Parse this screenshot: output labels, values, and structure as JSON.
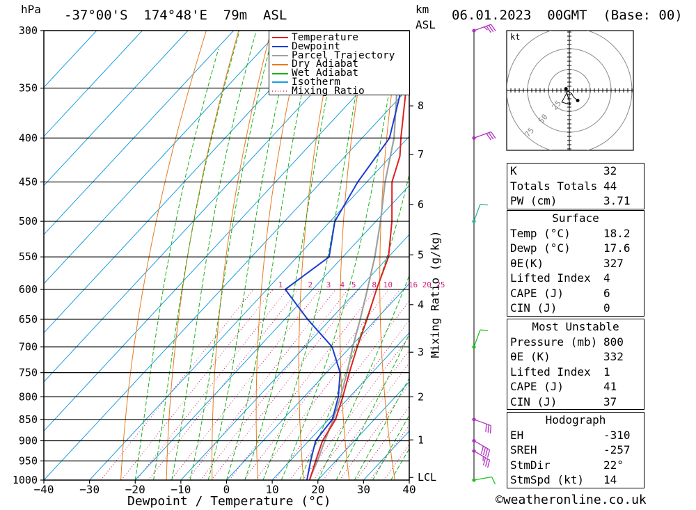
{
  "header": {
    "location": "-37°00'S  174°48'E  79m  ASL",
    "datetime": "06.01.2023  00GMT  (Base: 00)",
    "left_unit": "hPa",
    "right_unit_km": "km",
    "right_unit_asl": "ASL"
  },
  "legend": [
    "Temperature",
    "Dewpoint",
    "Parcel Trajectory",
    "Dry Adiabat",
    "Wet Adiabat",
    "Isotherm",
    "Mixing Ratio"
  ],
  "colors": {
    "temperature": "#e02020",
    "dewpoint": "#1a3cd8",
    "parcel": "#a0a0a0",
    "dry_adiabat": "#e87a1e",
    "wet_adiabat": "#19b019",
    "isotherm": "#1a9ee0",
    "mixing_ratio": "#d0207a",
    "wind_magenta": "#b030c0",
    "wind_cyan": "#30b0a0",
    "wind_green": "#20c020"
  },
  "chart_data": {
    "type": "skew-t",
    "xlabel": "Dewpoint / Temperature (°C)",
    "ylabel_right": "Mixing Ratio (g/kg)",
    "x_ticks": [
      -40,
      -30,
      -20,
      -10,
      0,
      10,
      20,
      30,
      40
    ],
    "pressure_levels": [
      300,
      350,
      400,
      450,
      500,
      550,
      600,
      650,
      700,
      750,
      800,
      850,
      900,
      950,
      1000
    ],
    "km_ticks": [
      {
        "label": "8",
        "p": 367
      },
      {
        "label": "7",
        "p": 418
      },
      {
        "label": "6",
        "p": 478
      },
      {
        "label": "5",
        "p": 547
      },
      {
        "label": "4",
        "p": 625
      },
      {
        "label": "3",
        "p": 710
      },
      {
        "label": "2",
        "p": 800
      },
      {
        "label": "1",
        "p": 898
      },
      {
        "label": "LCL",
        "p": 993
      }
    ],
    "mixing_ratio_labels": [
      "1",
      "2",
      "3",
      "4",
      "5",
      "8",
      "10",
      "16",
      "20",
      "25"
    ],
    "temperature": [
      {
        "p": 1000,
        "t": 18.2
      },
      {
        "p": 950,
        "t": 15.6
      },
      {
        "p": 900,
        "t": 13.0
      },
      {
        "p": 850,
        "t": 11.5
      },
      {
        "p": 800,
        "t": 8.5
      },
      {
        "p": 750,
        "t": 5.0
      },
      {
        "p": 700,
        "t": 1.5
      },
      {
        "p": 650,
        "t": -2.0
      },
      {
        "p": 600,
        "t": -6.0
      },
      {
        "p": 550,
        "t": -10.0
      },
      {
        "p": 500,
        "t": -16.5
      },
      {
        "p": 450,
        "t": -24.5
      },
      {
        "p": 420,
        "t": -28.0
      },
      {
        "p": 400,
        "t": -31.5
      },
      {
        "p": 350,
        "t": -40.5
      },
      {
        "p": 300,
        "t": -51.0
      }
    ],
    "dewpoint": [
      {
        "p": 1000,
        "t": 17.6
      },
      {
        "p": 950,
        "t": 14.5
      },
      {
        "p": 900,
        "t": 11.5
      },
      {
        "p": 850,
        "t": 10.8
      },
      {
        "p": 800,
        "t": 7.5
      },
      {
        "p": 750,
        "t": 3.0
      },
      {
        "p": 700,
        "t": -4.0
      },
      {
        "p": 650,
        "t": -15.0
      },
      {
        "p": 600,
        "t": -26.0
      },
      {
        "p": 550,
        "t": -23.0
      },
      {
        "p": 500,
        "t": -29.0
      },
      {
        "p": 450,
        "t": -32.0
      },
      {
        "p": 400,
        "t": -34.0
      },
      {
        "p": 350,
        "t": -41.5
      },
      {
        "p": 300,
        "t": -54.0
      }
    ],
    "parcel": [
      {
        "p": 1000,
        "t": 18.2
      },
      {
        "p": 993,
        "t": 17.8
      },
      {
        "p": 950,
        "t": 16.0
      },
      {
        "p": 900,
        "t": 13.5
      },
      {
        "p": 850,
        "t": 11.0
      },
      {
        "p": 800,
        "t": 8.0
      },
      {
        "p": 750,
        "t": 4.5
      },
      {
        "p": 700,
        "t": 0.5
      },
      {
        "p": 650,
        "t": -3.5
      },
      {
        "p": 600,
        "t": -8.0
      },
      {
        "p": 550,
        "t": -13.0
      },
      {
        "p": 500,
        "t": -19.0
      },
      {
        "p": 450,
        "t": -26.0
      },
      {
        "p": 400,
        "t": -33.0
      },
      {
        "p": 350,
        "t": -42.5
      },
      {
        "p": 300,
        "t": -54.0
      }
    ],
    "wind_barbs": [
      {
        "p": 300,
        "dir": 250,
        "kt": 35,
        "color": "#b030c0"
      },
      {
        "p": 400,
        "dir": 250,
        "kt": 30,
        "color": "#b030c0"
      },
      {
        "p": 500,
        "dir": 200,
        "kt": 10,
        "color": "#30b0a0"
      },
      {
        "p": 700,
        "dir": 200,
        "kt": 10,
        "color": "#20c020"
      },
      {
        "p": 850,
        "dir": 290,
        "kt": 30,
        "color": "#b030c0"
      },
      {
        "p": 900,
        "dir": 300,
        "kt": 40,
        "color": "#b030c0"
      },
      {
        "p": 925,
        "dir": 300,
        "kt": 35,
        "color": "#b030c0"
      },
      {
        "p": 1000,
        "dir": 260,
        "kt": 10,
        "color": "#20c020"
      }
    ],
    "hodograph": {
      "unit": "kt",
      "ring_labels": [
        "25",
        "50",
        "75"
      ],
      "trace": [
        [
          0,
          0
        ],
        [
          -2,
          -1
        ],
        [
          -9,
          -14
        ],
        [
          1,
          -17
        ],
        [
          -4,
          1
        ],
        [
          3,
          -4
        ],
        [
          5,
          -8
        ],
        [
          10,
          -12
        ]
      ],
      "storm_motion": [
        -4,
        2
      ]
    }
  },
  "indices": {
    "k": {
      "label": "K",
      "value": "32"
    },
    "tt": {
      "label": "Totals Totals",
      "value": "44"
    },
    "pw": {
      "label": "PW (cm)",
      "value": "3.71"
    }
  },
  "surface": {
    "title": "Surface",
    "temp": {
      "label": "Temp (°C)",
      "value": "18.2"
    },
    "dewp": {
      "label": "Dewp (°C)",
      "value": "17.6"
    },
    "theta_e": {
      "label": "θE(K)",
      "value": "327"
    },
    "li": {
      "label": "Lifted Index",
      "value": "4"
    },
    "cape": {
      "label": "CAPE (J)",
      "value": "6"
    },
    "cin": {
      "label": "CIN (J)",
      "value": "0"
    }
  },
  "most_unstable": {
    "title": "Most Unstable",
    "pressure": {
      "label": "Pressure (mb)",
      "value": "800"
    },
    "theta_e": {
      "label": "θE (K)",
      "value": "332"
    },
    "li": {
      "label": "Lifted Index",
      "value": "1"
    },
    "cape": {
      "label": "CAPE (J)",
      "value": "41"
    },
    "cin": {
      "label": "CIN (J)",
      "value": "37"
    }
  },
  "hodograph_stats": {
    "title": "Hodograph",
    "eh": {
      "label": "EH",
      "value": "-310"
    },
    "sreh": {
      "label": "SREH",
      "value": "-257"
    },
    "stmdir": {
      "label": "StmDir",
      "value": "22°"
    },
    "stmspd": {
      "label": "StmSpd (kt)",
      "value": "14"
    }
  },
  "footer": "©weatheronline.co.uk"
}
